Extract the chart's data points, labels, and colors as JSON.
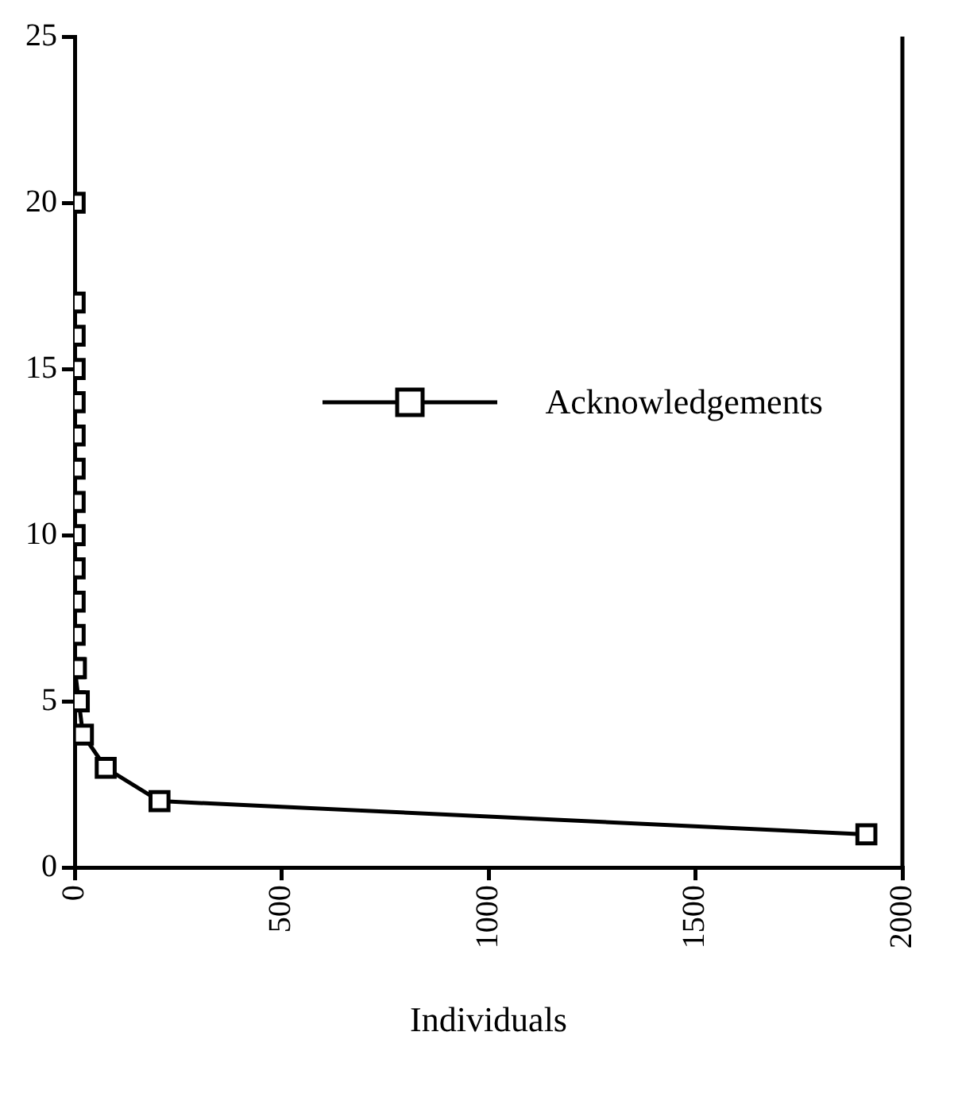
{
  "chart_data": {
    "type": "line",
    "xlabel": "Individuals",
    "x": [
      0,
      0,
      0,
      0,
      0,
      0,
      0,
      0,
      0,
      0,
      0,
      0,
      0,
      0,
      3,
      10,
      20,
      75,
      205,
      1913
    ],
    "series": [
      {
        "name": "Acknowledgements",
        "color": "#000000",
        "values": [
          20,
          17,
          16,
          15,
          14,
          13,
          12,
          11,
          10,
          9,
          8,
          7,
          6,
          5,
          6,
          5,
          4,
          3,
          2,
          1
        ]
      }
    ],
    "xlim": [
      0,
      2000
    ],
    "xticks": [
      0,
      500,
      1000,
      1500,
      2000
    ],
    "ylim": [
      0,
      25
    ],
    "yticks": [
      0,
      5,
      10,
      15,
      20,
      25
    ],
    "marker": "square",
    "line_style": "solid",
    "legend": "right",
    "grid": false
  }
}
